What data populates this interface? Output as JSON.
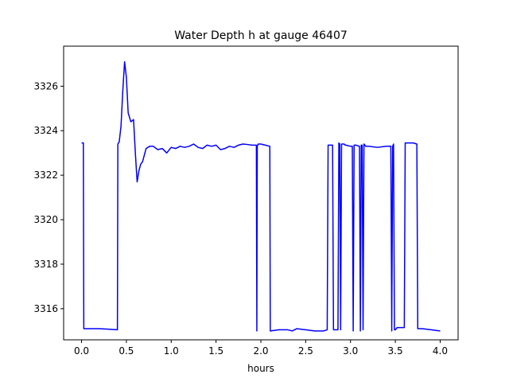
{
  "chart_data": {
    "type": "line",
    "title": "Water Depth h at gauge 46407",
    "xlabel": "hours",
    "ylabel": "",
    "xlim": [
      -0.2,
      4.2
    ],
    "ylim": [
      3314.6,
      3327.8
    ],
    "xticks": [
      0.0,
      0.5,
      1.0,
      1.5,
      2.0,
      2.5,
      3.0,
      3.5,
      4.0
    ],
    "xtick_labels": [
      "0.0",
      "0.5",
      "1.0",
      "1.5",
      "2.0",
      "2.5",
      "3.0",
      "3.5",
      "4.0"
    ],
    "yticks": [
      3316,
      3318,
      3320,
      3322,
      3324,
      3326
    ],
    "ytick_labels": [
      "3316",
      "3318",
      "3320",
      "3322",
      "3324",
      "3326"
    ],
    "grid": false,
    "series": [
      {
        "color": "#0000ff",
        "x": [
          0.0,
          0.02,
          0.025,
          0.1,
          0.2,
          0.3,
          0.4,
          0.405,
          0.42,
          0.44,
          0.46,
          0.48,
          0.5,
          0.52,
          0.55,
          0.58,
          0.6,
          0.62,
          0.64,
          0.66,
          0.68,
          0.72,
          0.76,
          0.8,
          0.85,
          0.9,
          0.95,
          1.0,
          1.05,
          1.1,
          1.15,
          1.2,
          1.25,
          1.3,
          1.35,
          1.4,
          1.45,
          1.5,
          1.55,
          1.6,
          1.65,
          1.7,
          1.75,
          1.8,
          1.85,
          1.9,
          1.95,
          1.955,
          1.96,
          1.965,
          1.97,
          2.0,
          2.05,
          2.1,
          2.105,
          2.2,
          2.3,
          2.35,
          2.4,
          2.5,
          2.6,
          2.7,
          2.74,
          2.75,
          2.8,
          2.81,
          2.86,
          2.87,
          2.88,
          2.89,
          2.9,
          2.91,
          2.92,
          2.93,
          2.94,
          2.95,
          3.0,
          3.02,
          3.03,
          3.04,
          3.05,
          3.06,
          3.1,
          3.11,
          3.12,
          3.13,
          3.14,
          3.15,
          3.16,
          3.17,
          3.2,
          3.3,
          3.4,
          3.45,
          3.46,
          3.47,
          3.48,
          3.49,
          3.5,
          3.51,
          3.52,
          3.6,
          3.61,
          3.62,
          3.7,
          3.74,
          3.75,
          3.8,
          3.9,
          4.0
        ],
        "y": [
          3323.45,
          3323.45,
          3315.1,
          3315.1,
          3315.1,
          3315.08,
          3315.05,
          3323.4,
          3323.5,
          3324.2,
          3325.8,
          3327.1,
          3326.4,
          3324.8,
          3324.4,
          3324.5,
          3323.0,
          3321.7,
          3322.2,
          3322.5,
          3322.6,
          3323.2,
          3323.3,
          3323.3,
          3323.15,
          3323.2,
          3323.0,
          3323.25,
          3323.2,
          3323.3,
          3323.25,
          3323.3,
          3323.4,
          3323.25,
          3323.2,
          3323.35,
          3323.3,
          3323.35,
          3323.15,
          3323.2,
          3323.3,
          3323.25,
          3323.35,
          3323.4,
          3323.38,
          3323.35,
          3323.35,
          3315.0,
          3323.3,
          3323.35,
          3323.4,
          3323.4,
          3323.35,
          3323.3,
          3315.0,
          3315.05,
          3315.05,
          3315.0,
          3315.1,
          3315.05,
          3315.0,
          3315.0,
          3315.05,
          3323.35,
          3323.35,
          3315.05,
          3315.05,
          3323.45,
          3323.4,
          3315.05,
          3323.4,
          3323.4,
          3323.4,
          3323.4,
          3323.35,
          3323.35,
          3323.3,
          3323.3,
          3315.0,
          3323.35,
          3323.35,
          3323.35,
          3323.3,
          3315.0,
          3323.35,
          3323.35,
          3315.05,
          3323.4,
          3323.35,
          3323.3,
          3323.3,
          3323.25,
          3323.3,
          3323.3,
          3315.0,
          3323.3,
          3323.4,
          3315.05,
          3315.05,
          3315.1,
          3315.15,
          3315.15,
          3323.45,
          3323.45,
          3323.45,
          3323.4,
          3315.1,
          3315.1,
          3315.05,
          3315.0
        ]
      }
    ]
  }
}
